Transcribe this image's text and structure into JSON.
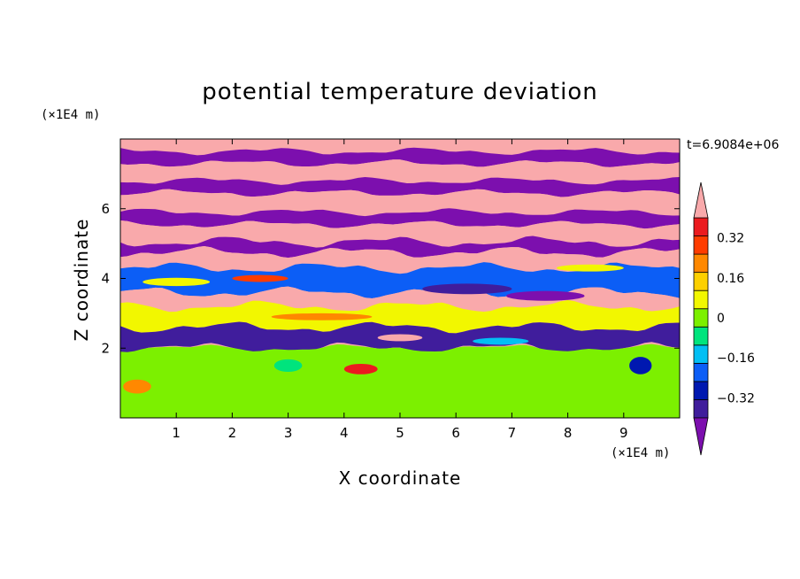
{
  "chart_data": {
    "type": "heatmap",
    "title": "potential temperature deviation",
    "xlabel": "X coordinate",
    "ylabel": "Z coordinate",
    "x_unit": "(×1E4 m)",
    "y_unit": "(×1E4 m)",
    "time_label": "t=6.9084e+06",
    "xlim": [
      0,
      10
    ],
    "ylim": [
      0,
      8
    ],
    "x_ticks": [
      "1",
      "2",
      "3",
      "4",
      "5",
      "6",
      "7",
      "8",
      "9"
    ],
    "y_ticks": [
      "2",
      "4",
      "6"
    ],
    "colorbar": {
      "levels": [
        -0.48,
        -0.4,
        -0.32,
        -0.24,
        -0.16,
        -0.08,
        0,
        0.08,
        0.16,
        0.24,
        0.32,
        0.4,
        0.48
      ],
      "tick_labels": [
        "0.32",
        "0.16",
        "0",
        "−0.16",
        "−0.32"
      ],
      "tick_values": [
        0.32,
        0.16,
        0,
        -0.16,
        -0.32
      ],
      "colors": [
        "#7c0fae",
        "#401d9c",
        "#0018b0",
        "#0c5ef6",
        "#02bff4",
        "#00e47d",
        "#7cf000",
        "#f2f700",
        "#fdd000",
        "#ff8800",
        "#ff3c00",
        "#eb1b1f",
        "#f9a9ab"
      ],
      "extend": "both"
    },
    "bands": [
      {
        "z": [
          7.65,
          8.0
        ],
        "value": 0.55
      },
      {
        "z": [
          7.3,
          7.65
        ],
        "value": -0.55
      },
      {
        "z": [
          6.8,
          7.3
        ],
        "value": 0.55
      },
      {
        "z": [
          6.45,
          6.8
        ],
        "value": -0.55
      },
      {
        "z": [
          5.9,
          6.45
        ],
        "value": 0.55
      },
      {
        "z": [
          5.55,
          5.9
        ],
        "value": -0.55
      },
      {
        "z": [
          5.05,
          5.55
        ],
        "value": 0.55
      },
      {
        "z": [
          4.75,
          5.05
        ],
        "value": -0.55
      },
      {
        "z": [
          4.3,
          4.75
        ],
        "value": 0.45
      },
      {
        "z": [
          3.6,
          4.3
        ],
        "value": -0.3
      },
      {
        "z": [
          3.2,
          3.6
        ],
        "value": 0.5
      },
      {
        "z": [
          2.6,
          3.2
        ],
        "value": 0.05
      },
      {
        "z": [
          2.0,
          2.6
        ],
        "value": -0.45
      },
      {
        "z": [
          0.0,
          2.0
        ],
        "value": -0.05
      }
    ]
  }
}
